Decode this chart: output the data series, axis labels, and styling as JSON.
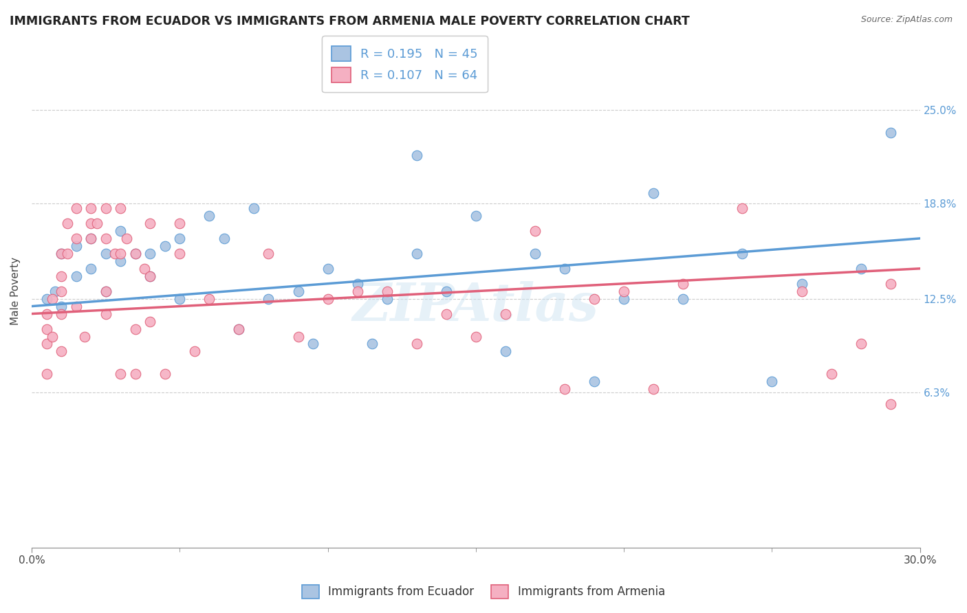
{
  "title": "IMMIGRANTS FROM ECUADOR VS IMMIGRANTS FROM ARMENIA MALE POVERTY CORRELATION CHART",
  "source": "Source: ZipAtlas.com",
  "ylabel": "Male Poverty",
  "right_yticks": [
    "25.0%",
    "18.8%",
    "12.5%",
    "6.3%"
  ],
  "right_ytick_vals": [
    0.25,
    0.188,
    0.125,
    0.063
  ],
  "xmin": 0.0,
  "xmax": 0.3,
  "ymin": -0.04,
  "ymax": 0.3,
  "ecuador_R": 0.195,
  "ecuador_N": 45,
  "armenia_R": 0.107,
  "armenia_N": 64,
  "ecuador_color": "#aac4e2",
  "armenia_color": "#f5b0c2",
  "ecuador_line_color": "#5b9bd5",
  "armenia_line_color": "#e0607a",
  "watermark": "ZIPAtlas",
  "ecuador_x": [
    0.005,
    0.008,
    0.01,
    0.01,
    0.015,
    0.015,
    0.02,
    0.02,
    0.025,
    0.025,
    0.03,
    0.03,
    0.035,
    0.04,
    0.04,
    0.045,
    0.05,
    0.05,
    0.06,
    0.065,
    0.07,
    0.075,
    0.08,
    0.09,
    0.095,
    0.1,
    0.11,
    0.115,
    0.12,
    0.13,
    0.13,
    0.14,
    0.15,
    0.16,
    0.17,
    0.18,
    0.19,
    0.2,
    0.21,
    0.22,
    0.24,
    0.25,
    0.26,
    0.28,
    0.29
  ],
  "ecuador_y": [
    0.125,
    0.13,
    0.155,
    0.12,
    0.16,
    0.14,
    0.165,
    0.145,
    0.155,
    0.13,
    0.17,
    0.15,
    0.155,
    0.155,
    0.14,
    0.16,
    0.165,
    0.125,
    0.18,
    0.165,
    0.105,
    0.185,
    0.125,
    0.13,
    0.095,
    0.145,
    0.135,
    0.095,
    0.125,
    0.22,
    0.155,
    0.13,
    0.18,
    0.09,
    0.155,
    0.145,
    0.07,
    0.125,
    0.195,
    0.125,
    0.155,
    0.07,
    0.135,
    0.145,
    0.235
  ],
  "armenia_x": [
    0.005,
    0.005,
    0.005,
    0.005,
    0.007,
    0.007,
    0.01,
    0.01,
    0.01,
    0.01,
    0.01,
    0.012,
    0.012,
    0.015,
    0.015,
    0.015,
    0.018,
    0.02,
    0.02,
    0.02,
    0.022,
    0.025,
    0.025,
    0.025,
    0.025,
    0.028,
    0.03,
    0.03,
    0.03,
    0.032,
    0.035,
    0.035,
    0.035,
    0.038,
    0.04,
    0.04,
    0.04,
    0.045,
    0.05,
    0.05,
    0.055,
    0.06,
    0.07,
    0.08,
    0.09,
    0.1,
    0.11,
    0.12,
    0.13,
    0.14,
    0.15,
    0.16,
    0.17,
    0.18,
    0.19,
    0.2,
    0.21,
    0.22,
    0.24,
    0.26,
    0.27,
    0.28,
    0.29,
    0.29
  ],
  "armenia_y": [
    0.115,
    0.105,
    0.095,
    0.075,
    0.125,
    0.1,
    0.155,
    0.14,
    0.13,
    0.115,
    0.09,
    0.175,
    0.155,
    0.185,
    0.165,
    0.12,
    0.1,
    0.185,
    0.175,
    0.165,
    0.175,
    0.185,
    0.165,
    0.13,
    0.115,
    0.155,
    0.185,
    0.155,
    0.075,
    0.165,
    0.155,
    0.105,
    0.075,
    0.145,
    0.175,
    0.14,
    0.11,
    0.075,
    0.175,
    0.155,
    0.09,
    0.125,
    0.105,
    0.155,
    0.1,
    0.125,
    0.13,
    0.13,
    0.095,
    0.115,
    0.1,
    0.115,
    0.17,
    0.065,
    0.125,
    0.13,
    0.065,
    0.135,
    0.185,
    0.13,
    0.075,
    0.095,
    0.135,
    0.055
  ]
}
